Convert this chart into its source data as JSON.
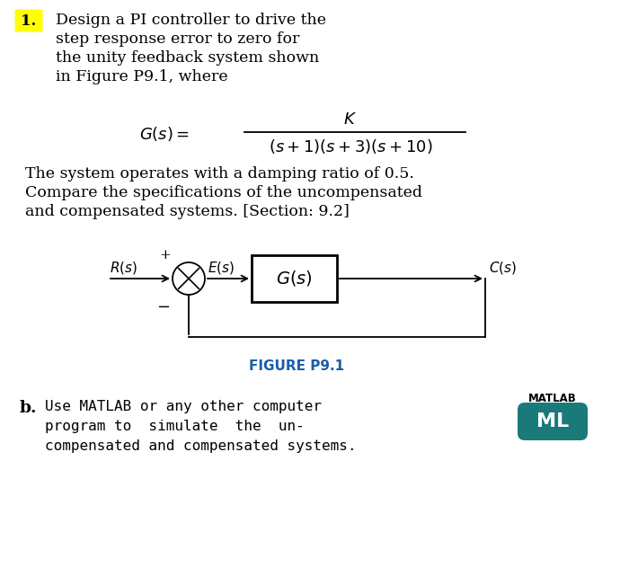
{
  "bg_color": "#ffffff",
  "number_badge_color": "#ffff00",
  "number_badge_text": "1.",
  "main_text_lines": [
    "Design a PI controller to drive the",
    "step response error to zero for",
    "the unity feedback system shown",
    "in Figure P9.1, where"
  ],
  "tf_gs_label": "$G(s) =$",
  "tf_numerator": "$K$",
  "tf_denominator": "$(s+1)(s+3)(s+10)$",
  "body_text_lines": [
    "The system operates with a damping ratio of 0.5.",
    "Compare the specifications of the uncompensated",
    "and compensated systems. [Section: 9.2]"
  ],
  "figure_label": "FIGURE P9.1",
  "figure_label_color": "#1a5fa8",
  "Rs_label": "$R(s)$",
  "Es_label": "$E(s)$",
  "Cs_label": "$C(s)$",
  "Gs_block_label": "$G(s)$",
  "plus_sign": "+",
  "minus_sign": "−",
  "part_b_bold": "b.",
  "part_b_lines": [
    "Use MATLAB or any other computer",
    "program to  simulate  the  un-",
    "compensated and compensated systems."
  ],
  "matlab_label": "MATLAB",
  "ml_badge_color": "#1a7a7a",
  "ml_badge_text": "ML",
  "block_facecolor": "#ffffff",
  "block_edgecolor": "#000000",
  "arrow_color": "#000000",
  "circle_facecolor": "#ffffff",
  "circle_edgecolor": "#000000",
  "text_color": "#000000",
  "badge_text_color": "#000000"
}
